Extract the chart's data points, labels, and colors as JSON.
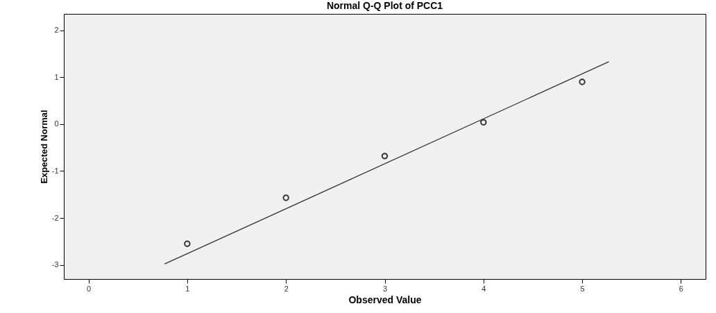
{
  "chart_data": {
    "type": "scatter",
    "title": "Normal Q-Q Plot of PCC1",
    "xlabel": "Observed Value",
    "ylabel": "Expected Normal",
    "xlim": [
      -0.25,
      6.25
    ],
    "xticks": [
      0,
      1,
      2,
      3,
      4,
      5,
      6
    ],
    "ylim": [
      -3.3,
      2.35
    ],
    "yticks": [
      -3,
      -2,
      -1,
      0,
      1,
      2
    ],
    "grid": false,
    "marker": "circle",
    "series": [
      {
        "color": "#333333",
        "x": [
          1,
          2,
          3,
          4,
          5
        ],
        "values": [
          -2.55,
          -1.57,
          -0.68,
          0.04,
          0.9
        ]
      },
      {
        "type": "line",
        "color": "#333333",
        "marker": "none",
        "line_style": "solid",
        "x": [
          0.77,
          5.27
        ],
        "values": [
          -2.98,
          1.33
        ]
      }
    ]
  }
}
